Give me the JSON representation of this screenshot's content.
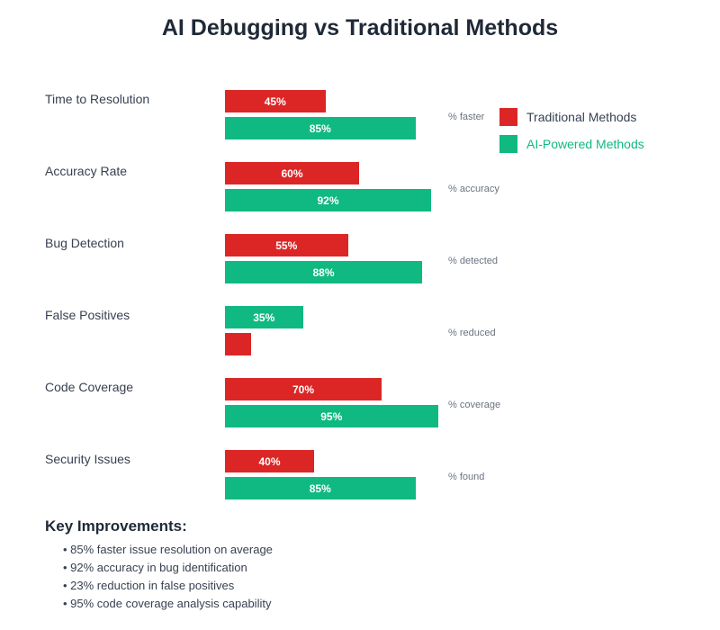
{
  "chart_data": {
    "type": "bar",
    "title": "AI Debugging vs Traditional Methods",
    "xlim": [
      0,
      100
    ],
    "colors": {
      "traditional": "#dc2626",
      "ai": "#10b981"
    },
    "legend": {
      "position": "right",
      "entries": [
        "Traditional Methods",
        "AI-Powered Methods"
      ]
    },
    "rows": [
      {
        "category": "Time to Resolution",
        "unit": "% faster",
        "bars": [
          {
            "series": "traditional",
            "value": 45,
            "label": "45%"
          },
          {
            "series": "ai",
            "value": 85,
            "label": "85%"
          }
        ]
      },
      {
        "category": "Accuracy Rate",
        "unit": "% accuracy",
        "bars": [
          {
            "series": "traditional",
            "value": 60,
            "label": "60%"
          },
          {
            "series": "ai",
            "value": 92,
            "label": "92%"
          }
        ]
      },
      {
        "category": "Bug Detection",
        "unit": "% detected",
        "bars": [
          {
            "series": "traditional",
            "value": 55,
            "label": "55%"
          },
          {
            "series": "ai",
            "value": 88,
            "label": "88%"
          }
        ]
      },
      {
        "category": "False Positives",
        "unit": "% reduced",
        "bars": [
          {
            "series": "ai",
            "value": 35,
            "label": "35%"
          },
          {
            "series": "traditional",
            "value": 12,
            "label": ""
          }
        ]
      },
      {
        "category": "Code Coverage",
        "unit": "% coverage",
        "bars": [
          {
            "series": "traditional",
            "value": 70,
            "label": "70%"
          },
          {
            "series": "ai",
            "value": 95,
            "label": "95%"
          }
        ]
      },
      {
        "category": "Security Issues",
        "unit": "% found",
        "bars": [
          {
            "series": "traditional",
            "value": 40,
            "label": "40%"
          },
          {
            "series": "ai",
            "value": 85,
            "label": "85%"
          }
        ]
      }
    ]
  },
  "improvements": {
    "title": "Key Improvements:",
    "items": [
      "• 85% faster issue resolution on average",
      "• 92% accuracy in bug identification",
      "• 23% reduction in false positives",
      "• 95% code coverage analysis capability"
    ]
  }
}
